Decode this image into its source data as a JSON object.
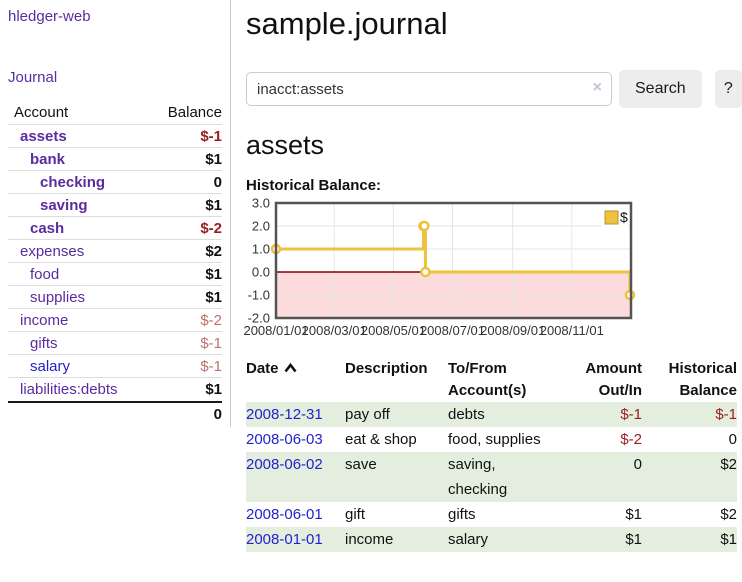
{
  "app": {
    "brand": "hledger-web",
    "nav_journal": "Journal"
  },
  "header": {
    "title": "sample.journal"
  },
  "search": {
    "value": "inacct:assets",
    "clear_icon": "×",
    "button": "Search",
    "help_button": "?"
  },
  "account_page": {
    "heading": "assets"
  },
  "sidebar": {
    "accounts_header": {
      "account": "Account",
      "balance": "Balance"
    },
    "accounts": [
      {
        "name": "assets",
        "depth": 1,
        "bold": true,
        "balance": "$-1",
        "balance_style": "neg-strong"
      },
      {
        "name": "bank",
        "depth": 2,
        "bold": true,
        "balance": "$1",
        "balance_style": "pos"
      },
      {
        "name": "checking",
        "depth": 3,
        "bold": true,
        "balance": "0",
        "balance_style": "pos"
      },
      {
        "name": "saving",
        "depth": 3,
        "bold": true,
        "balance": "$1",
        "balance_style": "pos"
      },
      {
        "name": "cash",
        "depth": 2,
        "bold": true,
        "balance": "$-2",
        "balance_style": "neg-strong"
      },
      {
        "name": "expenses",
        "depth": 1,
        "bold": false,
        "balance": "$2",
        "balance_style": "pos"
      },
      {
        "name": "food",
        "depth": 2,
        "bold": false,
        "balance": "$1",
        "balance_style": "pos"
      },
      {
        "name": "supplies",
        "depth": 2,
        "bold": false,
        "balance": "$1",
        "balance_style": "pos"
      },
      {
        "name": "income",
        "depth": 1,
        "bold": false,
        "balance": "$-2",
        "balance_style": "neg-soft"
      },
      {
        "name": "gifts",
        "depth": 2,
        "bold": false,
        "balance": "$-1",
        "balance_style": "neg-soft"
      },
      {
        "name": "salary",
        "depth": 2,
        "bold": false,
        "balance": "$-1",
        "balance_style": "neg-soft",
        "link_color": "blue"
      },
      {
        "name": "liabilities:debts",
        "depth": 1,
        "bold": false,
        "balance": "$1",
        "balance_style": "pos"
      }
    ],
    "total": "0"
  },
  "chart_data": {
    "type": "line",
    "step": true,
    "title": "Historical Balance:",
    "series": [
      {
        "name": "$",
        "points": [
          [
            "2008-01-01",
            1
          ],
          [
            "2008-06-01",
            2
          ],
          [
            "2008-06-02",
            2
          ],
          [
            "2008-06-03",
            0
          ],
          [
            "2008-12-31",
            -1
          ]
        ]
      }
    ],
    "xlim": [
      "2008-01-01",
      "2009-01-01"
    ],
    "ylim": [
      -2,
      3
    ],
    "yticks": [
      {
        "label": "3.0",
        "value": 3
      },
      {
        "label": "2.0",
        "value": 2
      },
      {
        "label": "1.0",
        "value": 1
      },
      {
        "label": "0.0",
        "value": 0
      },
      {
        "label": "-1.0",
        "value": -1
      },
      {
        "label": "-2.0",
        "value": -2
      }
    ],
    "xticks": [
      {
        "label": "2008/01/01",
        "date": "2008-01-01"
      },
      {
        "label": "2008/03/01",
        "date": "2008-03-01"
      },
      {
        "label": "2008/05/01",
        "date": "2008-05-01"
      },
      {
        "label": "2008/07/01",
        "date": "2008-07-01"
      },
      {
        "label": "2008/09/01",
        "date": "2008-09-01"
      },
      {
        "label": "2008/11/01",
        "date": "2008-11-01"
      }
    ],
    "legend_position": "top-right",
    "grid": true,
    "negative_region_shaded": true
  },
  "register": {
    "columns": [
      {
        "label": "Date",
        "sorted": "asc",
        "align": "left"
      },
      {
        "label": "Description",
        "align": "left"
      },
      {
        "label": "To/From Account(s)",
        "align": "left"
      },
      {
        "label": "Amount Out/In",
        "align": "right"
      },
      {
        "label": "Historical Balance",
        "align": "right"
      }
    ],
    "rows": [
      {
        "date": "2008-12-31",
        "description": "pay off",
        "accounts": "debts",
        "amount": "$-1",
        "amount_neg": true,
        "balance": "$-1",
        "balance_neg": true,
        "shaded": true
      },
      {
        "date": "2008-06-03",
        "description": "eat & shop",
        "accounts": "food, supplies",
        "amount": "$-2",
        "amount_neg": true,
        "balance": "0",
        "balance_neg": false,
        "shaded": false
      },
      {
        "date": "2008-06-02",
        "description": "save",
        "accounts": "saving, checking",
        "amount": "0",
        "amount_neg": false,
        "balance": "$2",
        "balance_neg": false,
        "shaded": true
      },
      {
        "date": "2008-06-01",
        "description": "gift",
        "accounts": "gifts",
        "amount": "$1",
        "amount_neg": false,
        "balance": "$2",
        "balance_neg": false,
        "shaded": false
      },
      {
        "date": "2008-01-01",
        "description": "income",
        "accounts": "salary",
        "amount": "$1",
        "amount_neg": false,
        "balance": "$1",
        "balance_neg": false,
        "shaded": true
      }
    ]
  },
  "colors": {
    "link_purple": "#5a2ca0",
    "link_blue": "#2222cc",
    "neg_strong": "#9b1c1c",
    "neg_soft": "#bf7070",
    "row_shade_green": "#e3eedf",
    "button_gray": "#ededed",
    "chart_line_yellow": "#edc240",
    "chart_legend_swatch_border": "#b8962e",
    "chart_negative_fill": "#fbdbdb",
    "chart_zero_line": "#8b0000",
    "chart_border": "#545454",
    "chart_grid": "#e6e6e6"
  }
}
